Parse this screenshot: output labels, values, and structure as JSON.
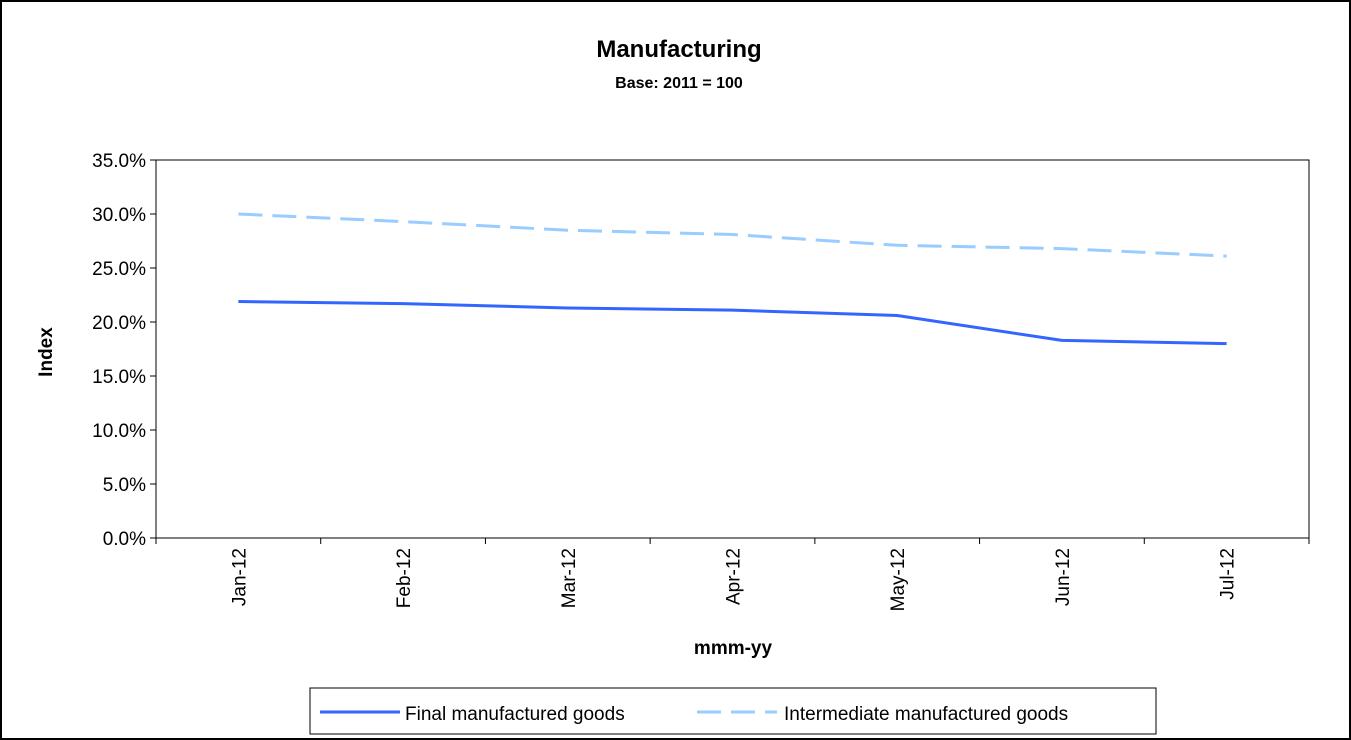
{
  "chart_data": {
    "type": "line",
    "title": "Manufacturing",
    "subtitle": "Base: 2011 = 100",
    "xlabel": "mmm-yy",
    "ylabel": "Index",
    "categories": [
      "Jan-12",
      "Feb-12",
      "Mar-12",
      "Apr-12",
      "May-12",
      "Jun-12",
      "Jul-12"
    ],
    "ylim": [
      0,
      35
    ],
    "y_ticks": [
      0,
      5,
      10,
      15,
      20,
      25,
      30,
      35
    ],
    "y_tick_labels": [
      "0.0%",
      "5.0%",
      "10.0%",
      "15.0%",
      "20.0%",
      "25.0%",
      "30.0%",
      "35.0%"
    ],
    "grid": false,
    "legend_position": "bottom",
    "series": [
      {
        "name": "Final manufactured goods",
        "color": "#3366ff",
        "dash": "solid",
        "values": [
          21.9,
          21.7,
          21.3,
          21.1,
          20.6,
          18.3,
          18.0
        ]
      },
      {
        "name": "Intermediate manufactured goods",
        "color": "#99ccff",
        "dash": "dashed",
        "values": [
          30.0,
          29.3,
          28.5,
          28.1,
          27.1,
          26.8,
          26.1
        ]
      }
    ]
  }
}
